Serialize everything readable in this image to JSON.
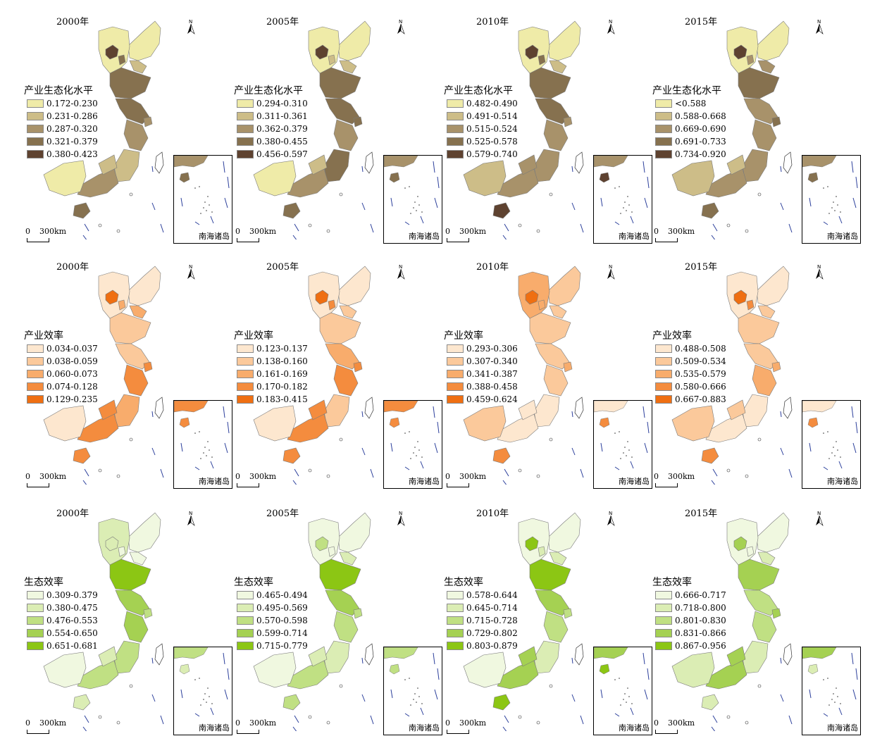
{
  "rows": [
    {
      "indicator": "产业生态化水平",
      "palette": [
        "#efeba8",
        "#cdbd88",
        "#a8926a",
        "#86714f",
        "#5e4230"
      ],
      "panels": [
        {
          "year": "2000年",
          "legend": [
            "0.172-0.230",
            "0.231-0.286",
            "0.287-0.320",
            "0.321-0.379",
            "0.380-0.423"
          ],
          "classes": [
            0,
            0,
            4,
            3,
            1,
            3,
            3,
            2,
            2,
            1,
            2,
            0,
            1,
            3
          ]
        },
        {
          "year": "2005年",
          "legend": [
            "0.294-0.310",
            "0.311-0.361",
            "0.362-0.379",
            "0.380-0.455",
            "0.456-0.597"
          ],
          "classes": [
            0,
            0,
            4,
            1,
            1,
            3,
            3,
            3,
            2,
            3,
            2,
            0,
            1,
            3
          ]
        },
        {
          "year": "2010年",
          "legend": [
            "0.482-0.490",
            "0.491-0.514",
            "0.515-0.524",
            "0.525-0.578",
            "0.579-0.740"
          ],
          "classes": [
            0,
            0,
            4,
            3,
            1,
            3,
            3,
            2,
            2,
            2,
            2,
            1,
            2,
            4
          ]
        },
        {
          "year": "2015年",
          "legend": [
            "<0.588",
            "0.588-0.668",
            "0.669-0.690",
            "0.691-0.733",
            "0.734-0.920"
          ],
          "classes": [
            0,
            0,
            4,
            2,
            2,
            3,
            2,
            3,
            2,
            2,
            2,
            1,
            1,
            3
          ]
        }
      ]
    },
    {
      "indicator": "产业效率",
      "palette": [
        "#fde7cf",
        "#fbc99b",
        "#f8ac6c",
        "#f48c3e",
        "#ef6f12"
      ],
      "panels": [
        {
          "year": "2000年",
          "legend": [
            "0.034-0.037",
            "0.038-0.059",
            "0.060-0.073",
            "0.074-0.128",
            "0.129-0.235"
          ],
          "classes": [
            0,
            0,
            4,
            2,
            2,
            1,
            1,
            3,
            3,
            2,
            3,
            0,
            3,
            3
          ]
        },
        {
          "year": "2005年",
          "legend": [
            "0.123-0.137",
            "0.138-0.160",
            "0.161-0.169",
            "0.170-0.182",
            "0.183-0.415"
          ],
          "classes": [
            0,
            0,
            4,
            3,
            1,
            1,
            2,
            3,
            3,
            1,
            3,
            0,
            3,
            3
          ]
        },
        {
          "year": "2010年",
          "legend": [
            "0.293-0.306",
            "0.307-0.340",
            "0.341-0.387",
            "0.388-0.458",
            "0.459-0.624"
          ],
          "classes": [
            1,
            2,
            4,
            2,
            1,
            1,
            1,
            2,
            1,
            0,
            0,
            1,
            0,
            3
          ]
        },
        {
          "year": "2015年",
          "legend": [
            "0.488-0.508",
            "0.509-0.534",
            "0.535-0.579",
            "0.580-0.666",
            "0.667-0.883"
          ],
          "classes": [
            0,
            0,
            4,
            3,
            1,
            1,
            1,
            2,
            2,
            0,
            0,
            1,
            1,
            3
          ]
        }
      ]
    },
    {
      "indicator": "生态效率",
      "palette": [
        "#f0f8e0",
        "#dbedb4",
        "#c0e083",
        "#a5d152",
        "#8cc614"
      ],
      "panels": [
        {
          "year": "2000年",
          "legend": [
            "0.309-0.379",
            "0.380-0.475",
            "0.476-0.553",
            "0.554-0.650",
            "0.651-0.681"
          ],
          "classes": [
            0,
            1,
            1,
            0,
            0,
            4,
            3,
            2,
            3,
            2,
            2,
            0,
            1,
            1
          ]
        },
        {
          "year": "2005年",
          "legend": [
            "0.465-0.494",
            "0.495-0.569",
            "0.570-0.598",
            "0.599-0.714",
            "0.715-0.779"
          ],
          "classes": [
            0,
            0,
            2,
            0,
            1,
            4,
            3,
            2,
            2,
            1,
            2,
            0,
            1,
            2
          ]
        },
        {
          "year": "2010年",
          "legend": [
            "0.578-0.644",
            "0.645-0.714",
            "0.715-0.728",
            "0.729-0.802",
            "0.803-0.879"
          ],
          "classes": [
            0,
            0,
            4,
            1,
            1,
            4,
            3,
            2,
            2,
            1,
            3,
            0,
            3,
            4
          ]
        },
        {
          "year": "2015年",
          "legend": [
            "0.666-0.717",
            "0.718-0.800",
            "0.801-0.830",
            "0.831-0.866",
            "0.867-0.956"
          ],
          "classes": [
            0,
            0,
            3,
            0,
            1,
            3,
            2,
            3,
            2,
            1,
            3,
            1,
            3,
            1
          ]
        }
      ]
    }
  ],
  "north_label": "N",
  "scale_zero": "0",
  "scale_label": "300km",
  "inset_label": "南海诸岛"
}
